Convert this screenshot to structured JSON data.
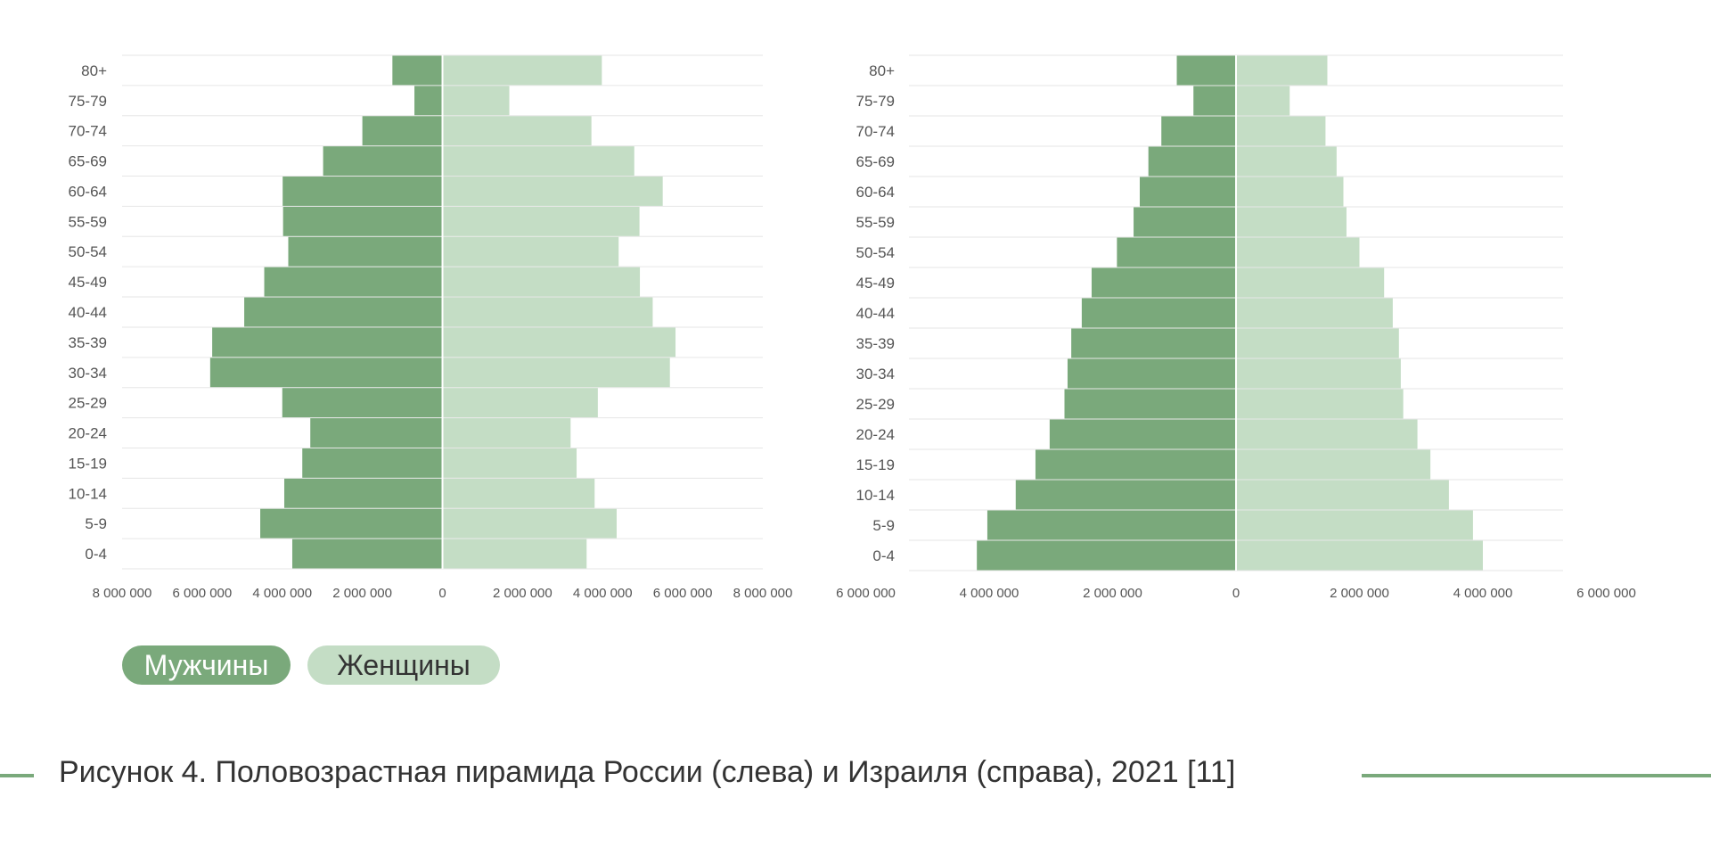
{
  "colors": {
    "men": "#7aa97b",
    "women": "#c4ddc5",
    "gridline": "#e6e6e6",
    "text": "#333333",
    "accent_line": "#7aa97b"
  },
  "legend": {
    "men_label": "Мужчины",
    "women_label": "Женщины"
  },
  "caption": "Рисунок 4. Половозрастная пирамида России (слева) и Израиля (справа), 2021 [11]",
  "chart_data": [
    {
      "type": "bar",
      "orientation": "horizontal",
      "layout": "population-pyramid",
      "title": "",
      "categories": [
        "0-4",
        "5-9",
        "10-14",
        "15-19",
        "20-24",
        "25-29",
        "30-34",
        "35-39",
        "40-44",
        "45-49",
        "50-54",
        "55-59",
        "60-64",
        "65-69",
        "70-74",
        "75-79",
        "80+"
      ],
      "series": [
        {
          "name": "Мужчины",
          "side": "left",
          "values": [
            3750000,
            4550000,
            3950000,
            3500000,
            3300000,
            4000000,
            5800000,
            5750000,
            4950000,
            4450000,
            3850000,
            3980000,
            3990000,
            2980000,
            2000000,
            700000,
            1250000
          ]
        },
        {
          "name": "Женщины",
          "side": "right",
          "values": [
            3600000,
            4350000,
            3800000,
            3350000,
            3200000,
            3880000,
            5680000,
            5820000,
            5250000,
            4930000,
            4400000,
            4920000,
            5500000,
            4790000,
            3720000,
            1670000,
            3980000
          ]
        }
      ],
      "xlim": [
        -8000000,
        8000000
      ],
      "xticks": [
        "8 000 000",
        "6 000 000",
        "4 000 000",
        "2 000 000",
        "0",
        "2 000 000",
        "4 000 000",
        "6 000 000",
        "8 000 000"
      ],
      "xlabel": "",
      "ylabel": "",
      "grid": true
    },
    {
      "type": "bar",
      "orientation": "horizontal",
      "layout": "population-pyramid",
      "title": "",
      "categories": [
        "0-4",
        "5-9",
        "10-14",
        "15-19",
        "20-24",
        "25-29",
        "30-34",
        "35-39",
        "40-44",
        "45-49",
        "50-54",
        "55-59",
        "60-64",
        "65-69",
        "70-74",
        "75-79",
        "80+"
      ],
      "series": [
        {
          "name": "Мужчины",
          "side": "left",
          "values": [
            4200000,
            4030000,
            3570000,
            3250000,
            3020000,
            2780000,
            2730000,
            2670000,
            2500000,
            2340000,
            1930000,
            1660000,
            1560000,
            1420000,
            1210000,
            690000,
            960000
          ]
        },
        {
          "name": "Женщины",
          "side": "right",
          "values": [
            4000000,
            3840000,
            3450000,
            3150000,
            2940000,
            2710000,
            2670000,
            2640000,
            2540000,
            2400000,
            2000000,
            1790000,
            1740000,
            1630000,
            1450000,
            870000,
            1480000
          ]
        }
      ],
      "xlim": [
        -5300000,
        5300000
      ],
      "xticks": [
        "6 000 000",
        "4 000 000",
        "2 000 000",
        "0",
        "2 000 000",
        "4 000 000",
        "6 000 000"
      ],
      "xlabel": "",
      "ylabel": "",
      "grid": true
    }
  ]
}
